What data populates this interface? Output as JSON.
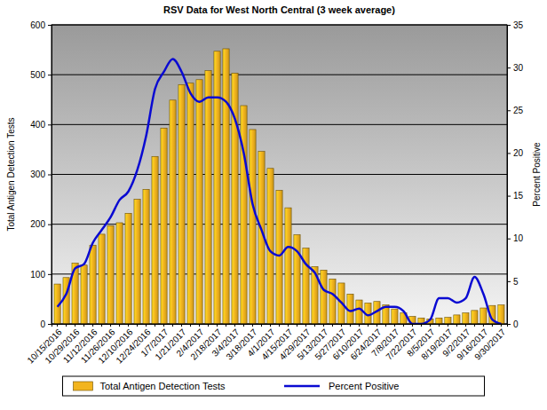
{
  "chart_data": {
    "type": "bar",
    "title": "RSV Data for West North Central (3 week average)",
    "ylabel": "Total Antigen Detection Tests",
    "y2label": "Percent Positive",
    "categories": [
      "10/15/2016",
      null,
      "10/29/2016",
      null,
      "11/12/2016",
      null,
      "11/26/2016",
      null,
      "12/10/2016",
      null,
      "12/24/2016",
      null,
      "1/7/2017",
      null,
      "1/21/2017",
      null,
      "2/4/2017",
      null,
      "2/18/2017",
      null,
      "3/4/2017",
      null,
      "3/18/2017",
      null,
      "4/1/2017",
      null,
      "4/15/2017",
      null,
      "4/29/2017",
      null,
      "5/13/2017",
      null,
      "5/27/2017",
      null,
      "6/10/2017",
      null,
      "6/24/2017",
      null,
      "7/8/2017",
      null,
      "7/22/2017",
      null,
      "8/5/2017",
      null,
      "8/19/2017",
      null,
      "9/2/2017",
      null,
      "9/16/2017",
      null,
      "9/30/2017"
    ],
    "series": [
      {
        "name": "Total Antigen Detection Tests",
        "type": "bar",
        "color": "#f2b41e",
        "values": [
          80,
          93,
          122,
          118,
          158,
          180,
          197,
          203,
          222,
          250,
          270,
          336,
          393,
          449,
          480,
          483,
          490,
          508,
          547,
          552,
          503,
          438,
          390,
          346,
          312,
          268,
          233,
          179,
          152,
          115,
          108,
          90,
          82,
          60,
          48,
          42,
          45,
          38,
          30,
          22,
          15,
          12,
          10,
          12,
          13,
          18,
          22,
          27,
          32,
          37,
          38
        ]
      },
      {
        "name": "Percent Positive",
        "type": "line",
        "color": "#0a0ad2",
        "axis": "y2",
        "values": [
          2.0,
          3.5,
          6.5,
          7.0,
          9.5,
          11.0,
          12.5,
          14.5,
          15.5,
          18.0,
          22.0,
          27.5,
          29.5,
          31.0,
          29.5,
          27.0,
          26.0,
          26.5,
          26.5,
          26.0,
          24.0,
          20.0,
          14.0,
          11.0,
          8.5,
          8.0,
          9.0,
          8.5,
          7.0,
          6.0,
          4.0,
          3.5,
          2.5,
          1.5,
          1.8,
          1.0,
          1.5,
          2.0,
          2.0,
          1.5,
          0.0,
          0.0,
          0.5,
          3.0,
          3.0,
          2.5,
          3.0,
          5.5,
          3.5,
          0.5,
          0.0
        ]
      }
    ],
    "ylim": [
      0,
      600
    ],
    "yticks": [
      0,
      100,
      200,
      300,
      400,
      500,
      600
    ],
    "y2lim": [
      0,
      35
    ],
    "y2ticks": [
      0,
      5,
      10,
      15,
      20,
      25,
      30,
      35
    ],
    "grid": true,
    "legend": "bottom"
  }
}
